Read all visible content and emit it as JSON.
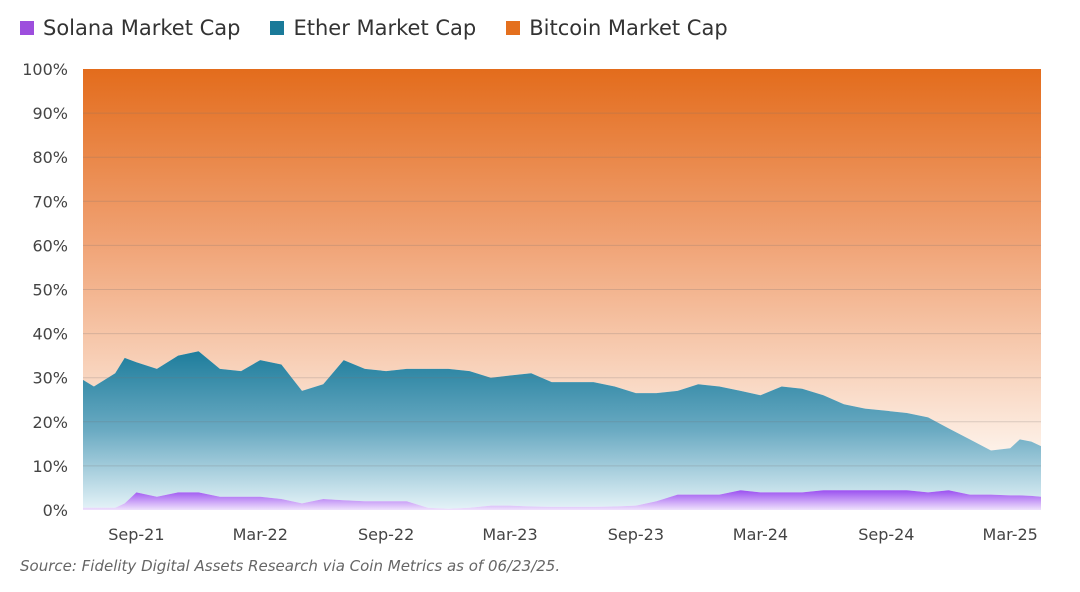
{
  "chart_data": {
    "type": "area",
    "stacked": true,
    "normalized": true,
    "title": "",
    "xlabel": "",
    "ylabel": "",
    "ylim": [
      0,
      100
    ],
    "y_ticks": [
      "0%",
      "10%",
      "20%",
      "30%",
      "40%",
      "50%",
      "60%",
      "70%",
      "80%",
      "90%",
      "100%"
    ],
    "x_ticks": [
      {
        "label": "Sep-21",
        "date": "2021-09-01"
      },
      {
        "label": "Mar-22",
        "date": "2022-03-01"
      },
      {
        "label": "Sep-22",
        "date": "2022-09-01"
      },
      {
        "label": "Mar-23",
        "date": "2023-03-01"
      },
      {
        "label": "Sep-23",
        "date": "2023-09-01"
      },
      {
        "label": "Mar-24",
        "date": "2024-03-01"
      },
      {
        "label": "Sep-24",
        "date": "2024-09-01"
      },
      {
        "label": "Mar-25",
        "date": "2025-03-01"
      }
    ],
    "xlim": [
      "2021-06-15",
      "2025-04-15"
    ],
    "grid": true,
    "legend_position": "top-left",
    "x": [
      "2021-06-15",
      "2021-07-01",
      "2021-08-01",
      "2021-08-15",
      "2021-09-01",
      "2021-10-01",
      "2021-11-01",
      "2021-12-01",
      "2022-01-01",
      "2022-02-01",
      "2022-03-01",
      "2022-04-01",
      "2022-05-01",
      "2022-06-01",
      "2022-07-01",
      "2022-08-01",
      "2022-09-01",
      "2022-10-01",
      "2022-11-01",
      "2022-12-01",
      "2023-01-01",
      "2023-02-01",
      "2023-03-01",
      "2023-04-01",
      "2023-05-01",
      "2023-06-01",
      "2023-07-01",
      "2023-08-01",
      "2023-09-01",
      "2023-10-01",
      "2023-11-01",
      "2023-12-01",
      "2024-01-01",
      "2024-02-01",
      "2024-03-01",
      "2024-04-01",
      "2024-05-01",
      "2024-06-01",
      "2024-07-01",
      "2024-08-01",
      "2024-09-01",
      "2024-10-01",
      "2024-11-01",
      "2024-12-01",
      "2025-01-01",
      "2025-02-01",
      "2025-03-01",
      "2025-03-15",
      "2025-04-01",
      "2025-04-15"
    ],
    "series": [
      {
        "name": "Solana Market Cap",
        "color": "#9d4edd",
        "values": [
          0.5,
          0.5,
          0.5,
          1.5,
          4,
          3,
          4,
          4,
          3,
          3,
          3,
          2.5,
          1.5,
          2.5,
          2.2,
          2,
          2,
          2,
          0.5,
          0.3,
          0.5,
          1,
          1,
          0.8,
          0.7,
          0.7,
          0.7,
          0.8,
          1,
          2,
          3.5,
          3.5,
          3.5,
          4.5,
          4,
          4,
          4,
          4.5,
          4.5,
          4.5,
          4.5,
          4.5,
          4,
          4.5,
          3.5,
          3.5,
          3.3,
          3.3,
          3.2,
          3
        ]
      },
      {
        "name": "Ether Market Cap",
        "color": "#1a7a99",
        "values": [
          29,
          27.5,
          30.5,
          33,
          29.5,
          29,
          31,
          32,
          29,
          28.5,
          31,
          30.5,
          25.5,
          26,
          31.8,
          30,
          29.5,
          30,
          31.5,
          31.7,
          31,
          29,
          29.5,
          30.2,
          28.3,
          28.3,
          28.3,
          27.2,
          25.5,
          24.5,
          23.5,
          25,
          24.5,
          22.5,
          22,
          24,
          23.5,
          21.5,
          19.5,
          18.5,
          18,
          17.5,
          17,
          14,
          12.5,
          10,
          10.7,
          12.7,
          12.3,
          11.5
        ]
      },
      {
        "name": "Bitcoin Market Cap",
        "color": "#e4701e",
        "values": [
          70.5,
          72,
          69,
          65.5,
          66.5,
          68,
          65,
          64,
          68,
          68.5,
          66,
          67,
          73,
          71.5,
          66,
          68,
          68.5,
          68,
          68,
          68,
          68.5,
          70,
          69.5,
          69,
          71,
          71,
          71,
          72,
          73.5,
          73.5,
          73,
          71.5,
          72,
          73,
          74,
          72,
          72.5,
          74,
          76,
          77,
          77.5,
          78,
          79,
          81.5,
          84,
          86.5,
          86,
          84,
          84.5,
          85.5
        ]
      }
    ]
  },
  "source": "Source: Fidelity Digital Assets Research via Coin Metrics as of 06/23/25."
}
